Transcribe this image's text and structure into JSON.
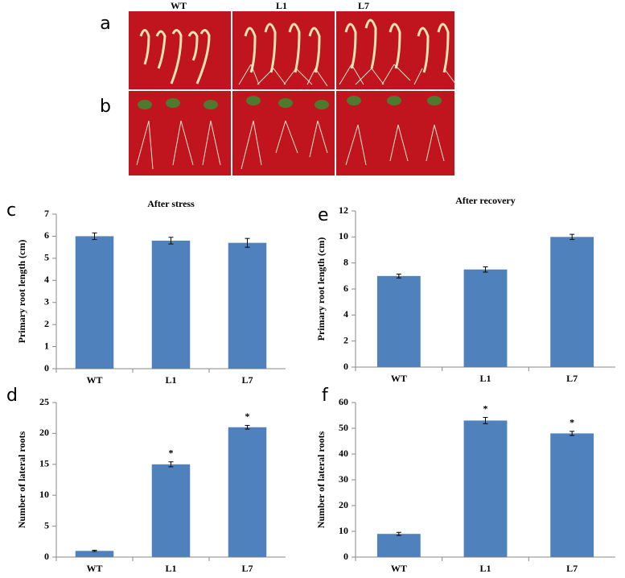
{
  "photos": {
    "column_labels": [
      "WT",
      "L1",
      "L7"
    ],
    "row_labels": [
      "a",
      "b"
    ]
  },
  "chart_data": [
    {
      "type": "bar",
      "panel": "c",
      "title": "After stress",
      "y_label": "Primary root length (cm)",
      "categories": [
        "WT",
        "L1",
        "L7"
      ],
      "values": [
        6.0,
        5.8,
        5.7
      ],
      "errors": [
        0.15,
        0.15,
        0.2
      ],
      "annotations": [
        null,
        null,
        null
      ],
      "color": "#4f81bd",
      "ylim": [
        0,
        7
      ],
      "yticks": [
        0,
        1,
        2,
        3,
        4,
        5,
        6,
        7
      ]
    },
    {
      "type": "bar",
      "panel": "e",
      "title": "After  recovery",
      "y_label": "Primary root length (cm)",
      "categories": [
        "WT",
        "L1",
        "L7"
      ],
      "values": [
        7.0,
        7.5,
        10.0
      ],
      "errors": [
        0.15,
        0.2,
        0.2
      ],
      "annotations": [
        null,
        null,
        null
      ],
      "color": "#4f81bd",
      "ylim": [
        0,
        12
      ],
      "yticks": [
        0,
        2,
        4,
        6,
        8,
        10,
        12
      ]
    },
    {
      "type": "bar",
      "panel": "d",
      "y_label": "Number of lateral roots",
      "categories": [
        "WT",
        "L1",
        "L7"
      ],
      "values": [
        1.0,
        15,
        21
      ],
      "errors": [
        0.1,
        0.4,
        0.3
      ],
      "annotations": [
        null,
        "*",
        "*"
      ],
      "color": "#4f81bd",
      "ylim": [
        0,
        25
      ],
      "yticks": [
        0,
        5,
        10,
        15,
        20,
        25
      ]
    },
    {
      "type": "bar",
      "panel": "f",
      "y_label": "Number of lateral roots",
      "categories": [
        "WT",
        "L1",
        "L7"
      ],
      "values": [
        9,
        53,
        48
      ],
      "errors": [
        0.6,
        1.2,
        0.8
      ],
      "annotations": [
        null,
        "*",
        "*"
      ],
      "color": "#4f81bd",
      "ylim": [
        0,
        60
      ],
      "yticks": [
        0,
        10,
        20,
        30,
        40,
        50,
        60
      ]
    }
  ]
}
